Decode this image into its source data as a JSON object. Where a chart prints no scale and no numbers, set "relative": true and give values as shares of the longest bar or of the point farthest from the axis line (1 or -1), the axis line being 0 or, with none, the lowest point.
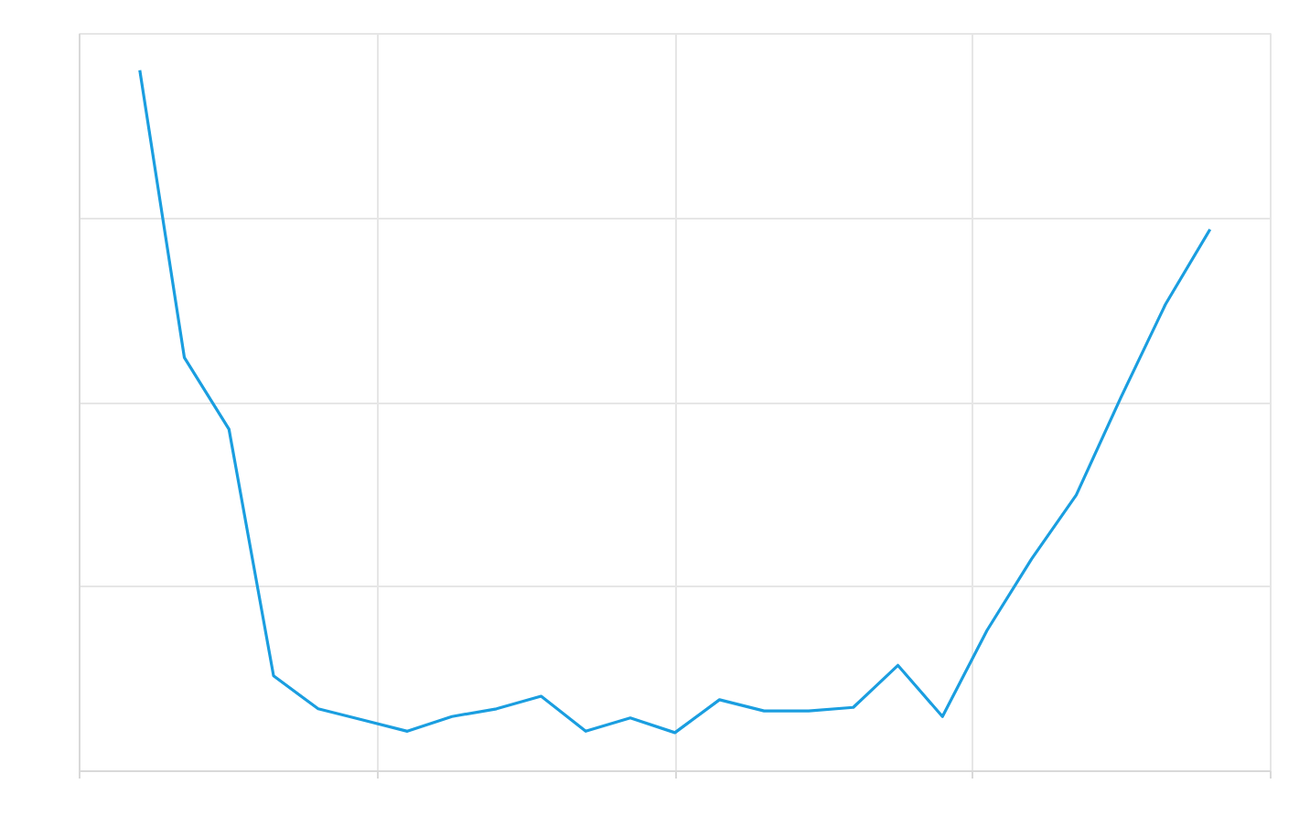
{
  "chart_data": {
    "type": "line",
    "relative": true,
    "grid": true,
    "categories": [
      null,
      null,
      null,
      null,
      null,
      null,
      null,
      null,
      null,
      null,
      null,
      null,
      null,
      null,
      null,
      null,
      null,
      null,
      null,
      null,
      null,
      null,
      null,
      null,
      null
    ],
    "series": [
      {
        "color": "#1a9ee0",
        "values": [
          1.0,
          0.59,
          0.488,
          0.136,
          0.089,
          0.073,
          0.057,
          0.078,
          0.089,
          0.107,
          0.057,
          0.076,
          0.055,
          0.102,
          0.086,
          0.086,
          0.091,
          0.151,
          0.078,
          0.201,
          0.303,
          0.394,
          0.533,
          0.666,
          0.773
        ]
      }
    ]
  }
}
